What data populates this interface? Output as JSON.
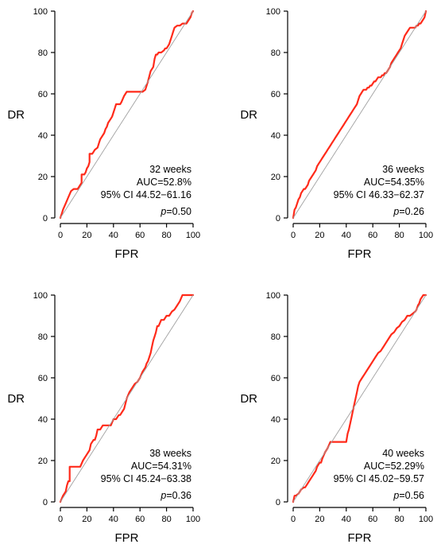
{
  "chart_data": [
    {
      "type": "line",
      "xlabel": "FPR",
      "ylabel": "DR",
      "xlim": [
        0,
        100
      ],
      "ylim": [
        0,
        100
      ],
      "xticks": [
        "0",
        "20",
        "40",
        "60",
        "80",
        "100"
      ],
      "yticks": [
        "0",
        "20",
        "40",
        "60",
        "80",
        "100"
      ],
      "grid": false,
      "annotation": {
        "label": "32 weeks",
        "auc": "AUC=52.8%",
        "ci": "95% CI 44.52−61.16",
        "p_prefix": "p",
        "p_value": "=0.50"
      },
      "series": [
        {
          "color": "#ff2a1a",
          "style": "roc",
          "x": [
            0,
            1,
            2,
            4,
            6,
            8,
            10,
            13,
            14,
            16,
            16,
            18,
            19,
            20,
            21,
            22,
            22,
            24,
            25,
            26,
            28,
            29,
            30,
            32,
            33,
            34,
            35,
            36,
            37,
            38,
            39,
            40,
            41,
            42,
            43,
            44,
            45,
            46,
            48,
            50,
            55,
            62,
            64,
            66,
            68,
            70,
            71,
            72,
            73,
            74,
            76,
            78,
            79,
            80,
            81,
            82,
            83,
            84,
            85,
            86,
            88,
            90,
            92,
            94,
            95,
            96,
            97,
            98,
            99,
            100
          ],
          "y": [
            0,
            2,
            4,
            7,
            10,
            13,
            14,
            14,
            15,
            17,
            21,
            21,
            22,
            24,
            25,
            27,
            31,
            31,
            32,
            33,
            34,
            36,
            38,
            40,
            41,
            43,
            44,
            46,
            47,
            48,
            49,
            51,
            53,
            55,
            55,
            55,
            55,
            56,
            59,
            61,
            61,
            61,
            62,
            66,
            71,
            73,
            77,
            79,
            79,
            80,
            80,
            81,
            82,
            82,
            83,
            84,
            86,
            88,
            90,
            92,
            93,
            93,
            94,
            94,
            94,
            95,
            96,
            97,
            99,
            100
          ]
        },
        {
          "color": "#a0a0a0",
          "style": "reference",
          "x": [
            0,
            100
          ],
          "y": [
            0,
            100
          ]
        }
      ]
    },
    {
      "type": "line",
      "xlabel": "FPR",
      "ylabel": "DR",
      "xlim": [
        0,
        100
      ],
      "ylim": [
        0,
        100
      ],
      "xticks": [
        "0",
        "20",
        "40",
        "60",
        "80",
        "100"
      ],
      "yticks": [
        "0",
        "20",
        "40",
        "60",
        "80",
        "100"
      ],
      "grid": false,
      "annotation": {
        "label": "36 weeks",
        "auc": "AUC=54.35%",
        "ci": "95% CI 46.33−62.37",
        "p_prefix": "p",
        "p_value": "=0.26"
      },
      "series": [
        {
          "color": "#ff2a1a",
          "style": "roc",
          "x": [
            0,
            1,
            2,
            3,
            4,
            5,
            6,
            7,
            8,
            9,
            10,
            11,
            12,
            13,
            14,
            15,
            16,
            17,
            18,
            19,
            20,
            21,
            22,
            23,
            24,
            25,
            26,
            27,
            28,
            29,
            30,
            31,
            32,
            33,
            34,
            35,
            36,
            37,
            38,
            39,
            40,
            41,
            42,
            43,
            44,
            45,
            46,
            47,
            48,
            49,
            50,
            51,
            52,
            53,
            54,
            55,
            56,
            57,
            58,
            59,
            60,
            61,
            62,
            63,
            64,
            65,
            66,
            67,
            68,
            69,
            70,
            71,
            72,
            73,
            74,
            75,
            76,
            77,
            78,
            79,
            80,
            81,
            82,
            83,
            84,
            85,
            86,
            87,
            88,
            89,
            90,
            91,
            92,
            93,
            94,
            95,
            96,
            97,
            98,
            99,
            100
          ],
          "y": [
            0,
            4,
            5,
            7,
            9,
            10,
            12,
            13,
            14,
            14,
            15,
            16,
            18,
            19,
            20,
            21,
            22,
            23,
            25,
            26,
            27,
            28,
            29,
            30,
            31,
            32,
            33,
            34,
            35,
            36,
            37,
            38,
            39,
            40,
            41,
            42,
            43,
            44,
            45,
            46,
            47,
            48,
            49,
            50,
            51,
            52,
            53,
            54,
            55,
            57,
            59,
            60,
            61,
            62,
            62,
            62,
            63,
            63,
            64,
            64,
            65,
            66,
            66,
            67,
            68,
            68,
            68,
            69,
            69,
            70,
            70,
            71,
            72,
            73,
            75,
            76,
            77,
            78,
            79,
            80,
            81,
            82,
            84,
            86,
            88,
            89,
            90,
            91,
            92,
            92,
            92,
            92,
            92,
            93,
            93,
            94,
            94,
            95,
            96,
            97,
            100
          ]
        },
        {
          "color": "#a0a0a0",
          "style": "reference",
          "x": [
            0,
            100
          ],
          "y": [
            0,
            100
          ]
        }
      ]
    },
    {
      "type": "line",
      "xlabel": "FPR",
      "ylabel": "DR",
      "xlim": [
        0,
        100
      ],
      "ylim": [
        0,
        100
      ],
      "xticks": [
        "0",
        "20",
        "40",
        "60",
        "80",
        "100"
      ],
      "yticks": [
        "0",
        "20",
        "40",
        "60",
        "80",
        "100"
      ],
      "grid": false,
      "annotation": {
        "label": "38 weeks",
        "auc": "AUC=54.31%",
        "ci": "95% CI 45.24−63.38",
        "p_prefix": "p",
        "p_value": "=0.36"
      },
      "series": [
        {
          "color": "#ff2a1a",
          "style": "roc",
          "x": [
            0,
            2,
            4,
            5,
            6,
            7,
            7,
            10,
            14,
            15,
            17,
            19,
            20,
            22,
            23,
            25,
            26,
            27,
            28,
            30,
            32,
            33,
            34,
            38,
            40,
            42,
            44,
            45,
            48,
            50,
            52,
            54,
            56,
            58,
            60,
            62,
            64,
            65,
            66,
            67,
            68,
            69,
            70,
            71,
            72,
            73,
            74,
            76,
            78,
            80,
            82,
            84,
            86,
            88,
            90,
            92,
            94,
            96,
            98,
            100
          ],
          "y": [
            0,
            3,
            5,
            8,
            10,
            10,
            17,
            17,
            17,
            17,
            20,
            22,
            23,
            25,
            28,
            30,
            30,
            32,
            35,
            35,
            37,
            37,
            37,
            37,
            40,
            40,
            42,
            42,
            45,
            50,
            53,
            55,
            57,
            58,
            60,
            63,
            65,
            67,
            68,
            70,
            72,
            75,
            78,
            80,
            82,
            85,
            85,
            88,
            88,
            90,
            90,
            92,
            93,
            95,
            97,
            100,
            100,
            100,
            100,
            100
          ]
        },
        {
          "color": "#a0a0a0",
          "style": "reference",
          "x": [
            0,
            100
          ],
          "y": [
            0,
            100
          ]
        }
      ]
    },
    {
      "type": "line",
      "xlabel": "FPR",
      "ylabel": "DR",
      "xlim": [
        0,
        100
      ],
      "ylim": [
        0,
        100
      ],
      "xticks": [
        "0",
        "20",
        "40",
        "60",
        "80",
        "100"
      ],
      "yticks": [
        "0",
        "20",
        "40",
        "60",
        "80",
        "100"
      ],
      "grid": false,
      "annotation": {
        "label": "40 weeks",
        "auc": "AUC=52.29%",
        "ci": "95% CI 45.02−59.57",
        "p_prefix": "p",
        "p_value": "=0.56"
      },
      "series": [
        {
          "color": "#ff2a1a",
          "style": "roc",
          "x": [
            0,
            1,
            2,
            4,
            5,
            6,
            8,
            9,
            10,
            11,
            12,
            13,
            14,
            15,
            16,
            17,
            18,
            19,
            20,
            21,
            22,
            24,
            26,
            28,
            30,
            32,
            34,
            36,
            38,
            40,
            41,
            42,
            43,
            44,
            45,
            46,
            47,
            48,
            49,
            50,
            52,
            54,
            56,
            58,
            60,
            62,
            64,
            66,
            68,
            70,
            72,
            74,
            76,
            78,
            80,
            82,
            84,
            86,
            88,
            90,
            92,
            93,
            94,
            95,
            96,
            97,
            98,
            99,
            100
          ],
          "y": [
            0,
            3,
            3,
            4,
            5,
            6,
            7,
            7,
            8,
            9,
            10,
            11,
            12,
            13,
            14,
            15,
            17,
            18,
            19,
            19,
            21,
            24,
            26,
            29,
            29,
            29,
            29,
            29,
            29,
            29,
            33,
            35,
            38,
            41,
            44,
            47,
            50,
            53,
            56,
            58,
            60,
            62,
            64,
            66,
            68,
            70,
            72,
            73,
            75,
            77,
            79,
            81,
            82,
            84,
            85,
            87,
            88,
            90,
            90,
            91,
            92,
            93,
            95,
            96,
            98,
            99,
            100,
            100,
            100
          ]
        },
        {
          "color": "#a0a0a0",
          "style": "reference",
          "x": [
            0,
            100
          ],
          "y": [
            0,
            100
          ]
        }
      ]
    }
  ]
}
